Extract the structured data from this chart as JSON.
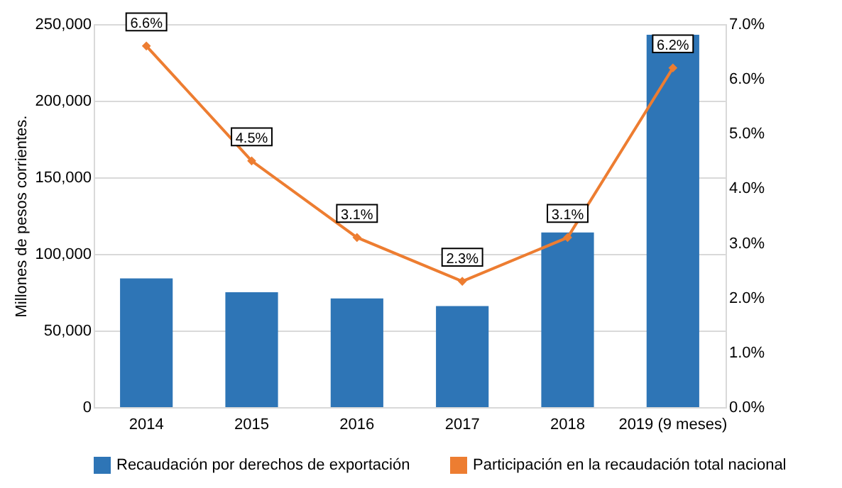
{
  "chart_data": {
    "type": "bar",
    "categories": [
      "2014",
      "2015",
      "2016",
      "2017",
      "2018",
      "2019 (9 meses)"
    ],
    "ylabel": "Millones de pesos corrientes.",
    "ylim": [
      0,
      250000
    ],
    "yticks": [
      0,
      {
        "value": 50000,
        "label": "50,000"
      },
      {
        "value": 100000,
        "label": "100,000"
      },
      {
        "value": 150000,
        "label": "150,000"
      },
      {
        "value": 200000,
        "label": "200,000"
      },
      {
        "value": 250000,
        "label": "250,000"
      }
    ],
    "y2lim": [
      0,
      7
    ],
    "y2ticks": [
      {
        "value": 0,
        "label": "0.0%"
      },
      {
        "value": 1,
        "label": "1.0%"
      },
      {
        "value": 2,
        "label": "2.0%"
      },
      {
        "value": 3,
        "label": "3.0%"
      },
      {
        "value": 4,
        "label": "4.0%"
      },
      {
        "value": 5,
        "label": "5.0%"
      },
      {
        "value": 6,
        "label": "6.0%"
      },
      {
        "value": 7,
        "label": "7.0%"
      }
    ],
    "grid": "y",
    "legend": "bottom",
    "series": [
      {
        "name": "Recaudación por derechos de exportación",
        "color": "#2e75b6",
        "values": [
          84000,
          75000,
          71000,
          66000,
          114000,
          243000
        ]
      },
      {
        "name": "Participación en la recaudación total nacional",
        "type": "line",
        "axis": "y2",
        "color": "#ed7d31",
        "marker": "diamond",
        "values": [
          6.6,
          4.5,
          3.1,
          2.3,
          3.1,
          6.2
        ],
        "value_labels": [
          "6.6%",
          "4.5%",
          "3.1%",
          "2.3%",
          "3.1%",
          "6.2%"
        ]
      }
    ]
  }
}
